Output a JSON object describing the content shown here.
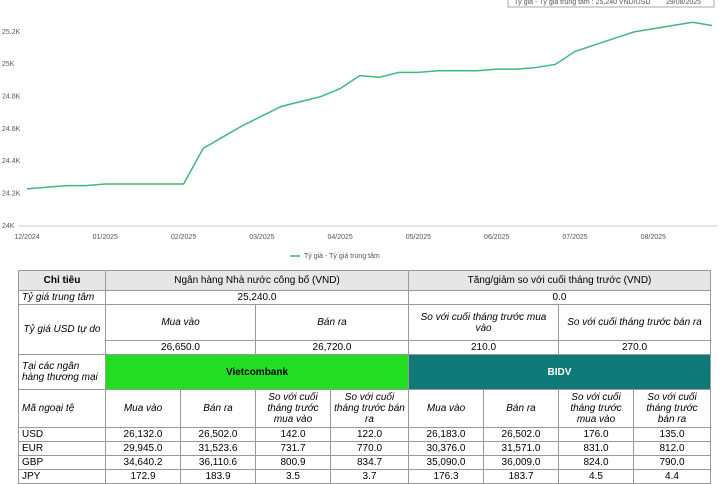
{
  "chart_data": {
    "type": "line",
    "tooltip": "Tỷ giá - Tỷ giá trung tâm : 25,240 VND/USD",
    "tooltip_date": "29/08/2025",
    "categories": [
      "12/2024",
      null,
      null,
      null,
      "01/2025",
      null,
      null,
      null,
      "02/2025",
      null,
      null,
      null,
      "03/2025",
      null,
      null,
      null,
      "04/2025",
      null,
      null,
      null,
      "05/2025",
      null,
      null,
      null,
      "06/2025",
      null,
      null,
      null,
      "07/2025",
      null,
      null,
      null,
      "08/2025",
      null,
      null,
      null
    ],
    "series": [
      {
        "name": "Tỷ giá - Tỷ giá trung tâm",
        "color": "#3cba7a",
        "values": [
          24230,
          24240,
          24250,
          24250,
          24260,
          24260,
          24260,
          24260,
          24260,
          24480,
          24550,
          24620,
          24680,
          24740,
          24770,
          24800,
          24850,
          24930,
          24920,
          24950,
          24950,
          24960,
          24960,
          24960,
          24970,
          24970,
          24980,
          25000,
          25080,
          25120,
          25160,
          25200,
          25220,
          25240,
          25260,
          25240
        ]
      }
    ],
    "ylim": [
      24000,
      25200
    ],
    "yticks": [
      {
        "value": 24000,
        "label": "24K"
      },
      {
        "value": 24200,
        "label": "24.2K"
      },
      {
        "value": 24400,
        "label": "24.4K"
      },
      {
        "value": 24600,
        "label": "24.6K"
      },
      {
        "value": 24800,
        "label": "24.8K"
      },
      {
        "value": 25000,
        "label": "25K"
      },
      {
        "value": 25200,
        "label": "25.2K"
      }
    ],
    "grid": false,
    "legend": "bottom"
  },
  "table": {
    "header": [
      "Chỉ tiêu",
      "Ngân hàng Nhà nước công bố (VND)",
      "Tăng/giảm so với cuối tháng trước (VND)"
    ],
    "central": {
      "label": "Tỷ giá trung tâm",
      "value": "25,240.0",
      "change": "0.0"
    },
    "free": {
      "label": "Tỷ giá USD tự do",
      "columns": [
        "Mua vào",
        "Bán ra",
        "So với cuối tháng trước mua vào",
        "So với cuối tháng trước bán ra"
      ],
      "values": [
        "26,650.0",
        "26,720.0",
        "210.0",
        "270.0"
      ]
    },
    "banks": {
      "label": "Tại các ngân hàng thương mại",
      "names": [
        "Vietcombank",
        "BIDV"
      ],
      "colors": [
        "#22dd22",
        "#0e7a77"
      ]
    },
    "columns": [
      "Mã ngoại tệ",
      "Mua vào",
      "Bán ra",
      "So với cuối tháng trước mua vào",
      "So với cuối tháng trước bán ra"
    ],
    "rows": [
      [
        "USD",
        "26,132.0",
        "26,502.0",
        "142.0",
        "122.0",
        "26,183.0",
        "26,502.0",
        "176.0",
        "135.0"
      ],
      [
        "EUR",
        "29,945.0",
        "31,523.6",
        "731.7",
        "770.0",
        "30,376.0",
        "31,571.0",
        "831.0",
        "812.0"
      ],
      [
        "GBP",
        "34,640.2",
        "36,110.6",
        "800.9",
        "834.7",
        "35,090.0",
        "36,009.0",
        "824.0",
        "790.0"
      ],
      [
        "JPY",
        "172.9",
        "183.9",
        "3.5",
        "3.7",
        "176.3",
        "183.7",
        "4.5",
        "4.4"
      ]
    ]
  }
}
